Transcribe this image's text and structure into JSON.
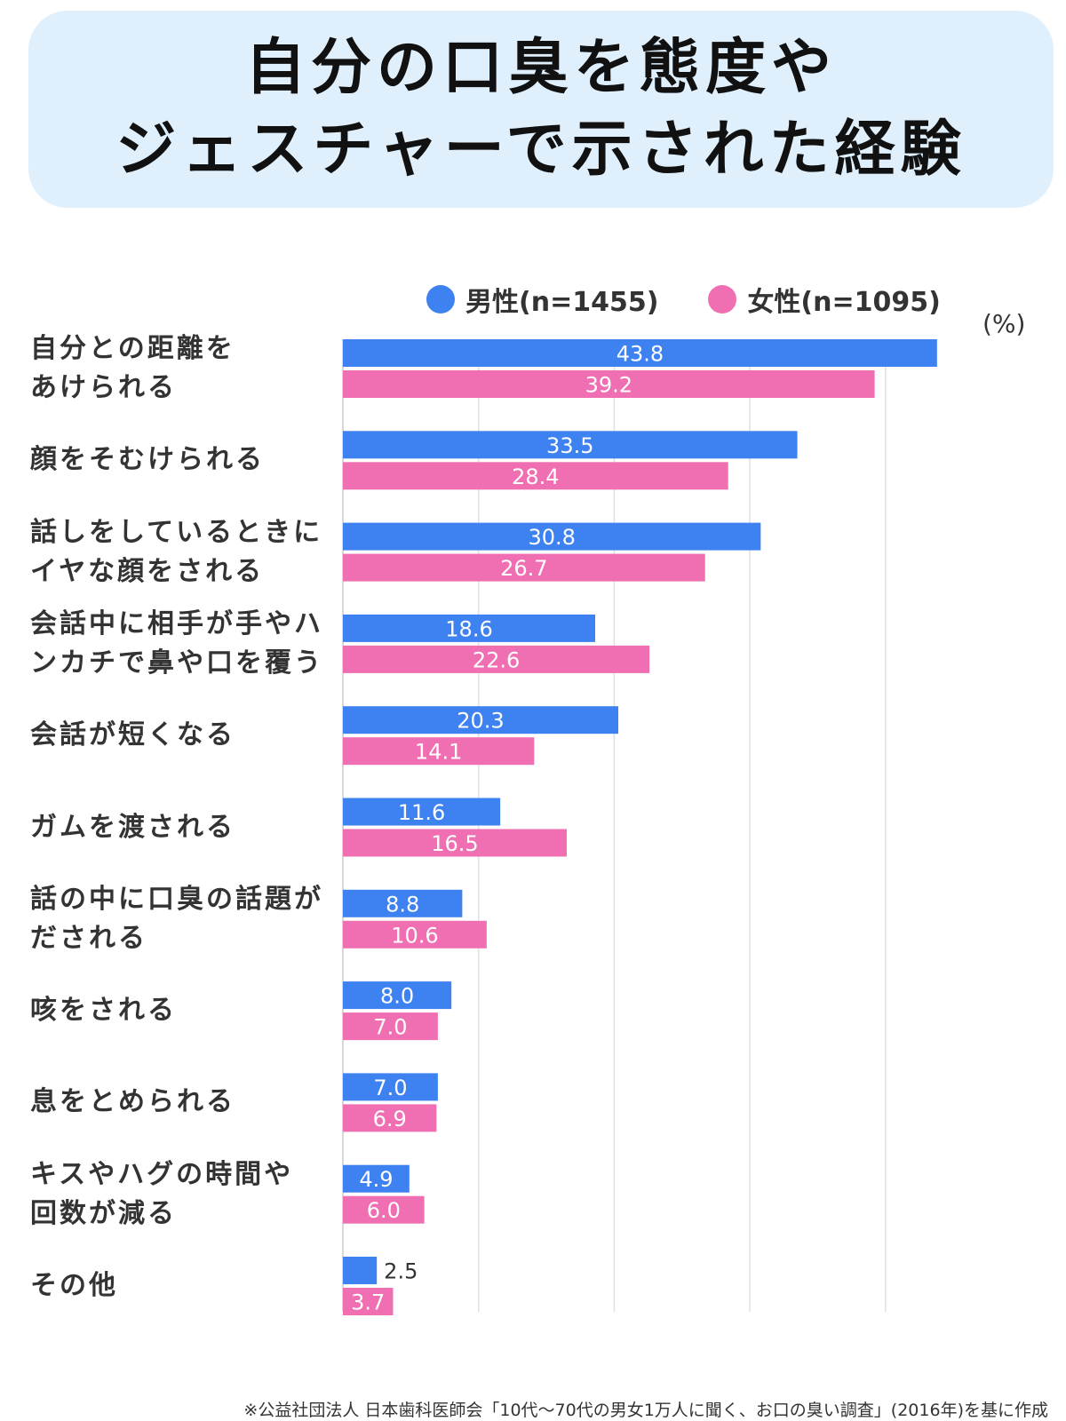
{
  "title": {
    "line1": "自分の口臭を態度や",
    "line2": "ジェスチャーで示された経験"
  },
  "colors": {
    "male": "#3d82f0",
    "female": "#ef6fb2",
    "grid": "#e0e0e0",
    "title_bg": "#dff0fc"
  },
  "legend": [
    {
      "label": "男性(n=1455)",
      "color": "#3d82f0"
    },
    {
      "label": "女性(n=1095)",
      "color": "#ef6fb2"
    }
  ],
  "unit": "(%)",
  "chart_data": {
    "type": "bar",
    "orientation": "horizontal",
    "categories": [
      [
        "自分との距離を",
        "あけられる"
      ],
      [
        "顔をそむけられる"
      ],
      [
        "話しをしているときに",
        "イヤな顔をされる"
      ],
      [
        "会話中に相手が手やハ",
        "ンカチで鼻や口を覆う"
      ],
      [
        "会話が短くなる"
      ],
      [
        "ガムを渡される"
      ],
      [
        "話の中に口臭の話題が",
        "だされる"
      ],
      [
        "咳をされる"
      ],
      [
        "息をとめられる"
      ],
      [
        "キスやハグの時間や",
        "回数が減る"
      ],
      [
        "その他"
      ]
    ],
    "series": [
      {
        "name": "男性(n=1455)",
        "color": "#3d82f0",
        "values": [
          43.8,
          33.5,
          30.8,
          18.6,
          20.3,
          11.6,
          8.8,
          8.0,
          7.0,
          4.9,
          2.5
        ],
        "labels": [
          "43.8",
          "33.5",
          "30.8",
          "18.6",
          "20.3",
          "11.6",
          "8.8",
          "8.0",
          "7.0",
          "4.9",
          "2.5"
        ]
      },
      {
        "name": "女性(n=1095)",
        "color": "#ef6fb2",
        "values": [
          39.2,
          28.4,
          26.7,
          22.6,
          14.1,
          16.5,
          10.6,
          7.0,
          6.9,
          6.0,
          3.7
        ],
        "labels": [
          "39.2",
          "28.4",
          "26.7",
          "22.6",
          "14.1",
          "16.5",
          "10.6",
          "7.0",
          "6.9",
          "6.0",
          "3.7"
        ]
      }
    ],
    "xlim": [
      0,
      50
    ],
    "grid": true,
    "legend_position": "top"
  },
  "footnote": "※公益社団法人 日本歯科医師会「10代〜70代の男女1万人に聞く、お口の臭い調査」(2016年)を基に作成"
}
